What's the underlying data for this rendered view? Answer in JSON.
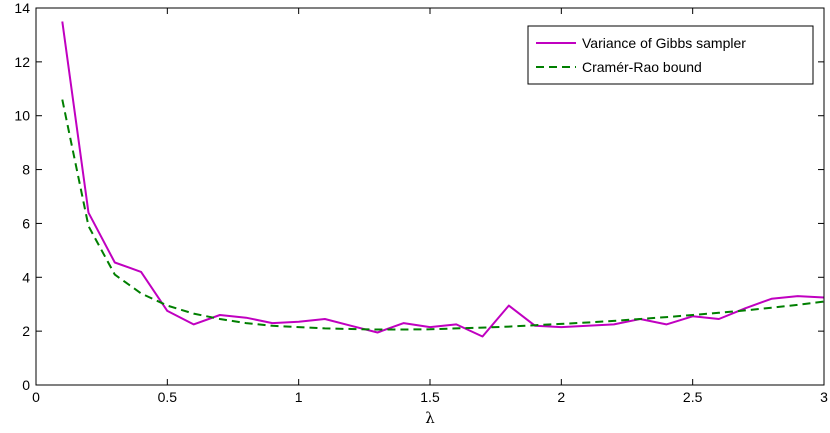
{
  "chart_data": {
    "type": "line",
    "xlabel": "λ",
    "ylabel": "",
    "title": "",
    "xlim": [
      0,
      3
    ],
    "ylim": [
      0,
      14
    ],
    "xticks": [
      "0",
      "0.5",
      "1",
      "1.5",
      "2",
      "2.5",
      "3"
    ],
    "yticks": [
      "0",
      "2",
      "4",
      "6",
      "8",
      "10",
      "12",
      "14"
    ],
    "grid": false,
    "legend_position": "top-right",
    "series": [
      {
        "name": "Variance of Gibbs sampler",
        "color": "#c000c0",
        "style": "solid",
        "x": [
          0.1,
          0.2,
          0.3,
          0.4,
          0.5,
          0.6,
          0.7,
          0.8,
          0.9,
          1.0,
          1.1,
          1.2,
          1.3,
          1.4,
          1.5,
          1.6,
          1.7,
          1.8,
          1.9,
          2.0,
          2.1,
          2.2,
          2.3,
          2.4,
          2.5,
          2.6,
          2.7,
          2.8,
          2.9,
          3.0
        ],
        "y": [
          13.5,
          6.4,
          4.55,
          4.2,
          2.75,
          2.25,
          2.6,
          2.5,
          2.3,
          2.35,
          2.45,
          2.2,
          1.95,
          2.3,
          2.15,
          2.25,
          1.8,
          2.95,
          2.2,
          2.15,
          2.2,
          2.25,
          2.45,
          2.25,
          2.55,
          2.45,
          2.85,
          3.2,
          3.3,
          3.25
        ]
      },
      {
        "name": "Cramér-Rao bound",
        "color": "#007f00",
        "style": "dashed",
        "x": [
          0.1,
          0.2,
          0.3,
          0.4,
          0.5,
          0.6,
          0.7,
          0.8,
          0.9,
          1.0,
          1.1,
          1.2,
          1.3,
          1.4,
          1.5,
          1.6,
          1.7,
          1.8,
          1.9,
          2.0,
          2.1,
          2.2,
          2.3,
          2.4,
          2.5,
          2.6,
          2.7,
          2.8,
          2.9,
          3.0
        ],
        "y": [
          10.6,
          5.9,
          4.1,
          3.4,
          2.95,
          2.65,
          2.45,
          2.3,
          2.2,
          2.15,
          2.1,
          2.08,
          2.06,
          2.06,
          2.07,
          2.1,
          2.13,
          2.17,
          2.22,
          2.27,
          2.32,
          2.38,
          2.45,
          2.52,
          2.6,
          2.68,
          2.77,
          2.87,
          2.98,
          3.1
        ]
      }
    ]
  }
}
